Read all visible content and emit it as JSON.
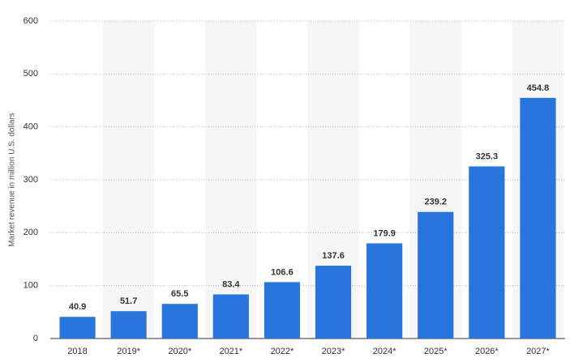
{
  "chart_data": {
    "type": "bar",
    "y_label": "Market revenue in million U.S. dollars",
    "categories": [
      "2018",
      "2019*",
      "2020*",
      "2021*",
      "2022*",
      "2023*",
      "2024*",
      "2025*",
      "2026*",
      "2027*"
    ],
    "values": [
      40.9,
      51.7,
      65.5,
      83.4,
      106.6,
      137.6,
      179.9,
      239.2,
      325.3,
      454.8
    ],
    "color": "#2876dd",
    "ylim": [
      0,
      600
    ],
    "yticks": [
      0,
      100,
      200,
      300,
      400,
      500,
      600
    ],
    "grid": true,
    "data_labels": true
  }
}
